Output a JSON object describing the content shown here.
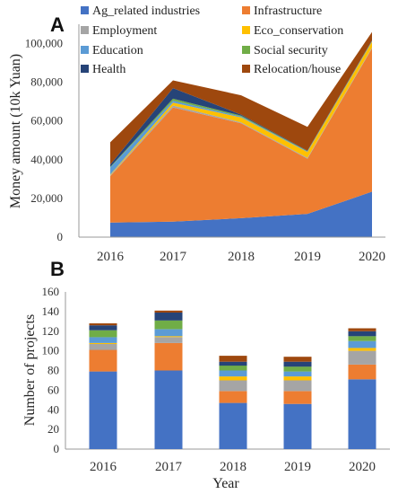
{
  "chart_data": [
    {
      "panel_label": "A",
      "type": "area",
      "stacked": true,
      "ylabel": "Money amount (10k Yuan)",
      "xlabel": "",
      "ylim": [
        0,
        110000
      ],
      "yticks": [
        0,
        20000,
        40000,
        60000,
        80000,
        100000
      ],
      "ytick_labels": [
        "0",
        "20,000",
        "40,000",
        "60,000",
        "80,000",
        "100,000"
      ],
      "x": [
        "2016",
        "2017",
        "2018",
        "2019",
        "2020"
      ],
      "grid": false,
      "legend_position": "top",
      "series": [
        {
          "name": "Ag_related industries",
          "color": "#4472C4",
          "values": [
            7500,
            8000,
            9800,
            12000,
            23500
          ]
        },
        {
          "name": "Infrastructure",
          "color": "#ED7D31",
          "values": [
            24000,
            59000,
            49000,
            28500,
            74000
          ]
        },
        {
          "name": "Employment",
          "color": "#A5A5A5",
          "values": [
            500,
            1000,
            500,
            500,
            500
          ]
        },
        {
          "name": "Eco_conservation",
          "color": "#FFC000",
          "values": [
            300,
            1500,
            2500,
            3000,
            3000
          ]
        },
        {
          "name": "Education",
          "color": "#5B9BD5",
          "values": [
            3700,
            1000,
            500,
            200,
            200
          ]
        },
        {
          "name": "Social security",
          "color": "#70AD47",
          "values": [
            300,
            1000,
            500,
            200,
            200
          ]
        },
        {
          "name": "Health",
          "color": "#264478",
          "values": [
            1200,
            5500,
            500,
            300,
            300
          ]
        },
        {
          "name": "Relocation/house",
          "color": "#9E480E",
          "values": [
            11500,
            4000,
            10000,
            12300,
            4300
          ]
        }
      ]
    },
    {
      "panel_label": "B",
      "type": "bar",
      "stacked": true,
      "ylabel": "Number of projects",
      "xlabel": "Year",
      "ylim": [
        0,
        160
      ],
      "yticks": [
        0,
        20,
        40,
        60,
        80,
        100,
        120,
        140,
        160
      ],
      "ytick_labels": [
        "0",
        "20",
        "40",
        "60",
        "80",
        "100",
        "120",
        "140",
        "160"
      ],
      "categories": [
        "2016",
        "2017",
        "2018",
        "2019",
        "2020"
      ],
      "grid": false,
      "series": [
        {
          "name": "Ag_related industries",
          "color": "#4472C4",
          "values": [
            79,
            80,
            47,
            46,
            71
          ]
        },
        {
          "name": "Infrastructure",
          "color": "#ED7D31",
          "values": [
            22,
            28,
            12,
            13,
            15
          ]
        },
        {
          "name": "Employment",
          "color": "#A5A5A5",
          "values": [
            6,
            6,
            11,
            11,
            14
          ]
        },
        {
          "name": "Eco_conservation",
          "color": "#FFC000",
          "values": [
            1,
            1,
            4,
            4,
            3
          ]
        },
        {
          "name": "Education",
          "color": "#5B9BD5",
          "values": [
            6,
            7,
            6,
            5,
            7
          ]
        },
        {
          "name": "Social security",
          "color": "#70AD47",
          "values": [
            7,
            9,
            5,
            5,
            5
          ]
        },
        {
          "name": "Health",
          "color": "#264478",
          "values": [
            5,
            8,
            4,
            5,
            5
          ]
        },
        {
          "name": "Relocation/house",
          "color": "#9E480E",
          "values": [
            2,
            2,
            6,
            5,
            3
          ]
        }
      ]
    }
  ]
}
